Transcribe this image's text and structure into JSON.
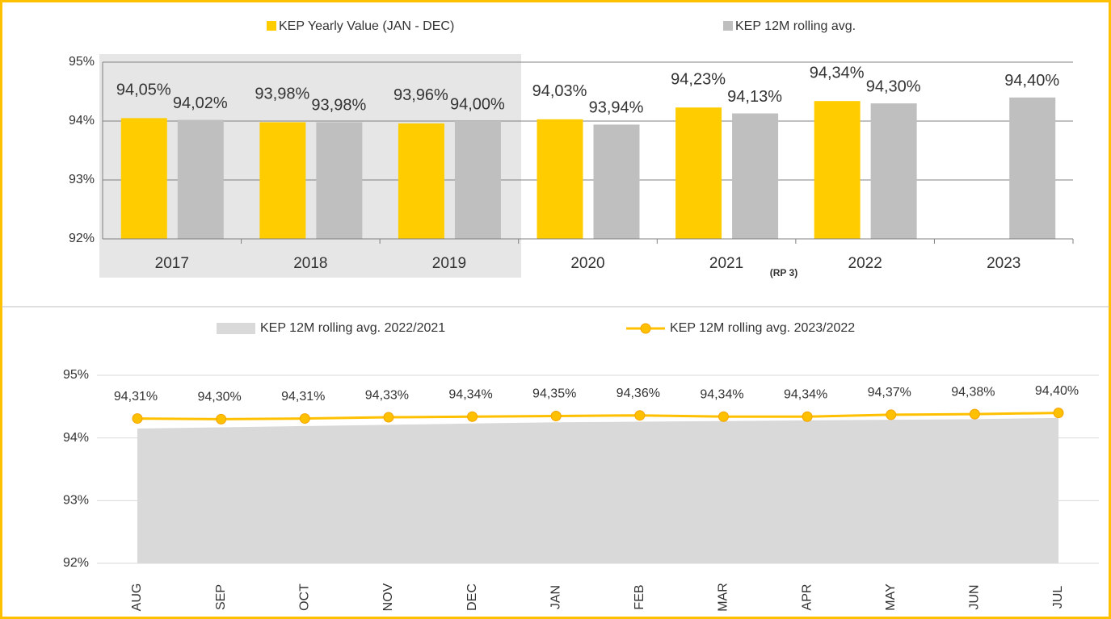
{
  "chart_data": [
    {
      "type": "bar",
      "categories": [
        "2017",
        "2018",
        "2019",
        "2020",
        "2021",
        "2022",
        "2023"
      ],
      "series": [
        {
          "name": "KEP Yearly Value (JAN - DEC)",
          "color": "#FFCC00",
          "label_color": "#C9A227",
          "values": [
            94.05,
            93.98,
            93.96,
            94.03,
            94.23,
            94.34,
            null
          ],
          "value_labels": [
            "94,05%",
            "93,98%",
            "93,96%",
            "94,03%",
            "94,23%",
            "94,34%",
            null
          ]
        },
        {
          "name": "KEP 12M rolling avg.",
          "color": "#BFBFBF",
          "label_color": "#000000",
          "values": [
            94.02,
            93.98,
            94.0,
            93.94,
            94.13,
            94.3,
            94.4
          ],
          "value_labels": [
            "94,02%",
            "93,98%",
            "94,00%",
            "93,94%",
            "94,13%",
            "94,30%",
            "94,40%"
          ]
        }
      ],
      "annotations": [
        "(RP 3)"
      ],
      "ylim": [
        92,
        95
      ],
      "yticks": [
        {
          "value": 92,
          "label": "92%"
        },
        {
          "value": 93,
          "label": "93%"
        },
        {
          "value": 94,
          "label": "94%"
        },
        {
          "value": 95,
          "label": "95%"
        }
      ],
      "grid": true,
      "legend": "top"
    },
    {
      "type": "line",
      "categories": [
        "AUG",
        "SEP",
        "OCT",
        "NOV",
        "DEC",
        "JAN",
        "FEB",
        "MAR",
        "APR",
        "MAY",
        "JUN",
        "JUL"
      ],
      "series": [
        {
          "name": "KEP 12M rolling avg. 2022/2021",
          "type": "area",
          "color": "#D9D9D9",
          "values": [
            94.15,
            94.17,
            94.19,
            94.21,
            94.23,
            94.25,
            94.26,
            94.27,
            94.28,
            94.29,
            94.3,
            94.32
          ]
        },
        {
          "name": "KEP 12M rolling avg. 2023/2022",
          "type": "line",
          "color": "#FFC000",
          "values": [
            94.31,
            94.3,
            94.31,
            94.33,
            94.34,
            94.35,
            94.36,
            94.34,
            94.34,
            94.37,
            94.38,
            94.4
          ],
          "value_labels": [
            "94,31%",
            "94,30%",
            "94,31%",
            "94,33%",
            "94,34%",
            "94,35%",
            "94,36%",
            "94,34%",
            "94,34%",
            "94,37%",
            "94,38%",
            "94,40%"
          ]
        }
      ],
      "ylim": [
        92,
        95
      ],
      "yticks": [
        {
          "value": 92,
          "label": "92%"
        },
        {
          "value": 93,
          "label": "93%"
        },
        {
          "value": 94,
          "label": "94%"
        },
        {
          "value": 95,
          "label": "95%"
        }
      ],
      "grid": true,
      "legend": "top"
    }
  ]
}
